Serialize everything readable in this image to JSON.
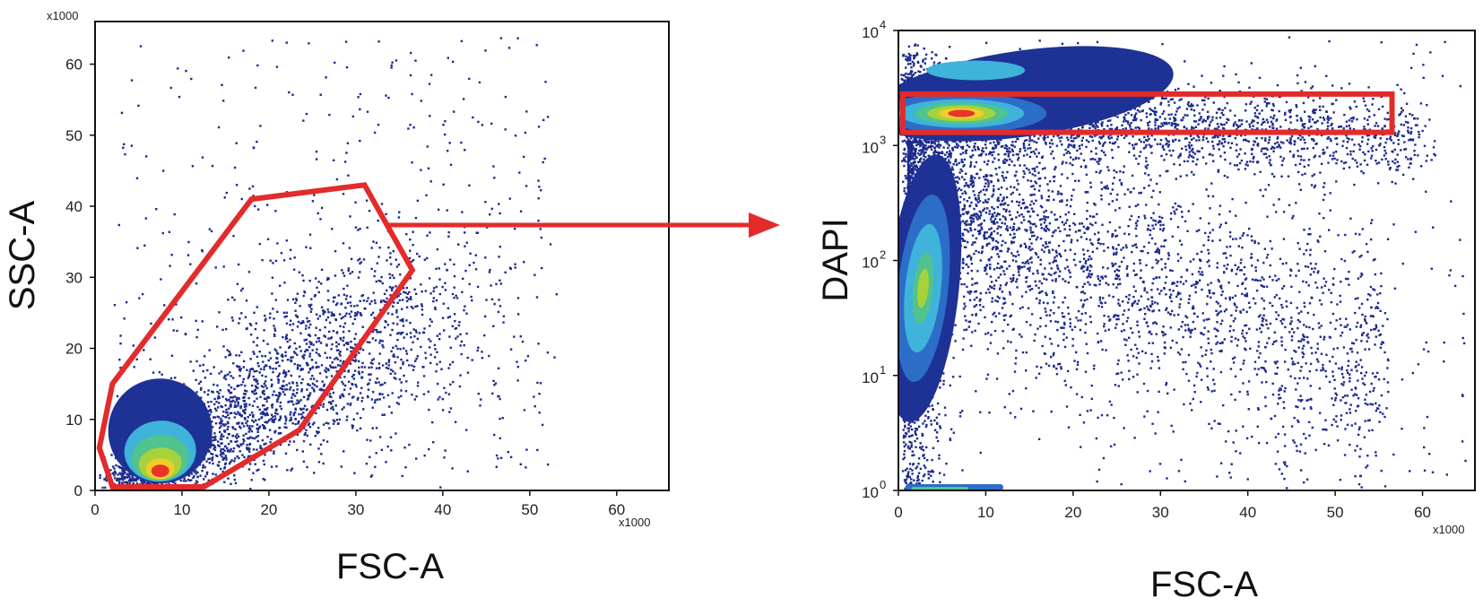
{
  "chart_data": [
    {
      "type": "scatter",
      "subtype": "flow-cytometry-density-plot",
      "title": "",
      "xlabel": "FSC-A",
      "ylabel": "SSC-A",
      "x_multiplier": "x1000",
      "y_multiplier": "x1000",
      "xlim": [
        0,
        66
      ],
      "ylim": [
        0,
        66
      ],
      "xticks": [
        "0",
        "10",
        "20",
        "30",
        "40",
        "50",
        "60"
      ],
      "yticks": [
        "0",
        "10",
        "20",
        "30",
        "40",
        "50",
        "60"
      ],
      "density_peak": {
        "x": 7.5,
        "y": 2.5
      },
      "gate": {
        "shape": "polygon",
        "color": "#e32b2b",
        "vertices": [
          [
            0.5,
            6
          ],
          [
            2,
            15
          ],
          [
            18,
            41
          ],
          [
            31,
            43
          ],
          [
            36.5,
            31
          ],
          [
            23.5,
            8.5
          ],
          [
            12.5,
            0.5
          ],
          [
            2,
            0.5
          ]
        ]
      }
    },
    {
      "type": "scatter",
      "subtype": "flow-cytometry-density-plot",
      "title": "",
      "xlabel": "FSC-A",
      "ylabel": "DAPI",
      "x_multiplier": "x1000",
      "xscale": "linear",
      "yscale": "log",
      "xlim": [
        0,
        66
      ],
      "ylim": [
        1,
        10000
      ],
      "xticks": [
        "0",
        "10",
        "20",
        "30",
        "40",
        "50",
        "60"
      ],
      "yticks_base": [
        "10",
        "10",
        "10",
        "10",
        "10"
      ],
      "yticks_exp": [
        "0",
        "1",
        "2",
        "3",
        "4"
      ],
      "density_peaks": [
        {
          "x": 7,
          "y": 1900
        },
        {
          "x": 2,
          "y": 40
        }
      ],
      "gate": {
        "shape": "rectangle",
        "color": "#e32b2b",
        "x_range": [
          0.5,
          56.5
        ],
        "y_range": [
          1300,
          2800
        ]
      }
    }
  ],
  "arrow": {
    "from": "left-gate",
    "to": "right-plot",
    "color": "#e32b2b"
  },
  "colors": {
    "dot": "#1d2b8c",
    "level1": "#1e3296",
    "level2": "#2c6dc8",
    "level3": "#3fb3da",
    "level4": "#51c38d",
    "level5": "#a8d23c",
    "level6": "#f2cd2a",
    "level7": "#e8342a",
    "gate": "#e32b2b"
  }
}
